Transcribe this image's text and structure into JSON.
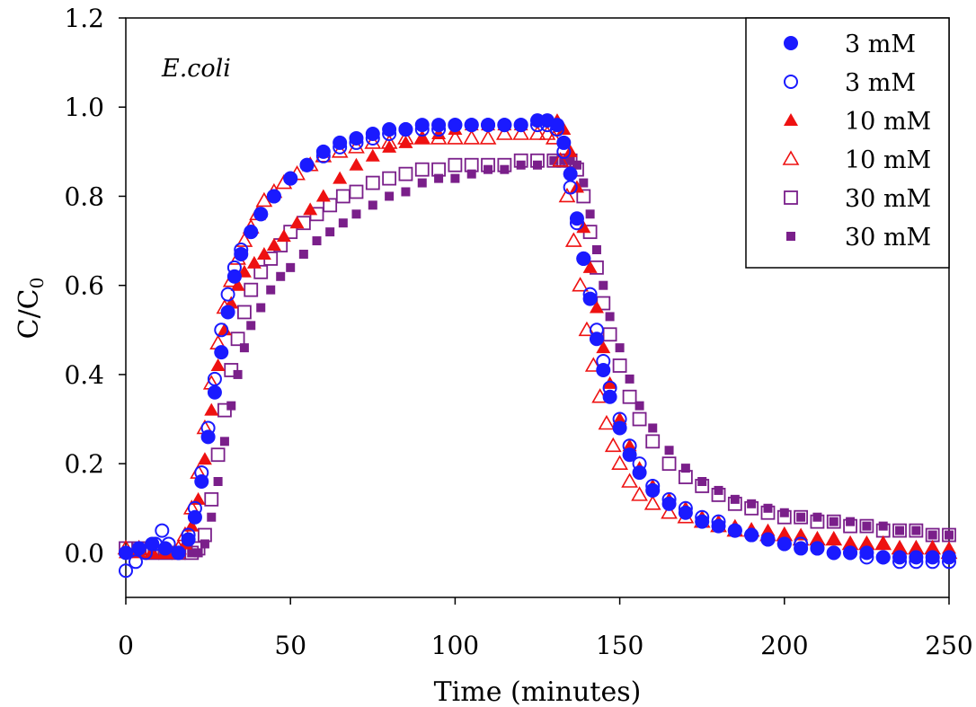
{
  "chart_data": {
    "type": "scatter",
    "title": "",
    "annotation": "E.coli",
    "xlabel": "Time (minutes)",
    "ylabel": "C/C",
    "ylabel_sub": "0",
    "xlim": [
      0,
      250
    ],
    "ylim": [
      -0.1,
      1.2
    ],
    "xticks": [
      0,
      50,
      100,
      150,
      200,
      250
    ],
    "xtick_labels": [
      "0",
      "50",
      "100",
      "150",
      "200",
      "250"
    ],
    "yticks": [
      0.0,
      0.2,
      0.4,
      0.6,
      0.8,
      1.0,
      1.2
    ],
    "ytick_labels": [
      "0.0",
      "0.2",
      "0.4",
      "0.6",
      "0.8",
      "1.0",
      "1.2"
    ],
    "grid": false,
    "legend_position": "top-right",
    "series": [
      {
        "name": "3 mM",
        "marker": "filled-circle",
        "color": "#1a1aff",
        "x": [
          0,
          4,
          8,
          12,
          16,
          19,
          21,
          23,
          25,
          27,
          29,
          31,
          33,
          35,
          38,
          41,
          45,
          50,
          55,
          60,
          65,
          70,
          75,
          80,
          85,
          90,
          95,
          100,
          105,
          110,
          115,
          120,
          125,
          128,
          131,
          133,
          135,
          137,
          139,
          141,
          143,
          145,
          147,
          150,
          153,
          156,
          160,
          165,
          170,
          175,
          180,
          185,
          190,
          195,
          200,
          205,
          210,
          215,
          220,
          225,
          230,
          235,
          240,
          245,
          250
        ],
        "y": [
          0.0,
          0.01,
          0.02,
          0.01,
          0.0,
          0.03,
          0.08,
          0.16,
          0.26,
          0.36,
          0.45,
          0.54,
          0.62,
          0.67,
          0.72,
          0.76,
          0.8,
          0.84,
          0.87,
          0.9,
          0.92,
          0.93,
          0.94,
          0.95,
          0.95,
          0.96,
          0.96,
          0.96,
          0.96,
          0.96,
          0.96,
          0.96,
          0.97,
          0.97,
          0.96,
          0.92,
          0.85,
          0.75,
          0.66,
          0.57,
          0.48,
          0.41,
          0.35,
          0.28,
          0.22,
          0.18,
          0.14,
          0.11,
          0.09,
          0.07,
          0.06,
          0.05,
          0.04,
          0.03,
          0.02,
          0.01,
          0.01,
          0.0,
          0.0,
          0.0,
          -0.01,
          -0.01,
          -0.01,
          -0.01,
          -0.01
        ]
      },
      {
        "name": "3 mM",
        "marker": "open-circle",
        "color": "#1a1aff",
        "x": [
          0,
          3,
          6,
          9,
          11,
          13,
          16,
          19,
          21,
          23,
          25,
          27,
          29,
          31,
          33,
          35,
          38,
          41,
          45,
          50,
          55,
          60,
          65,
          70,
          75,
          80,
          85,
          90,
          95,
          100,
          105,
          110,
          115,
          120,
          125,
          128,
          131,
          133,
          135,
          137,
          139,
          141,
          143,
          145,
          147,
          150,
          153,
          156,
          160,
          165,
          170,
          175,
          180,
          185,
          190,
          195,
          200,
          205,
          210,
          215,
          220,
          225,
          230,
          235,
          240,
          245,
          250
        ],
        "y": [
          -0.04,
          -0.02,
          0.0,
          0.02,
          0.05,
          0.02,
          0.0,
          0.04,
          0.1,
          0.18,
          0.28,
          0.39,
          0.5,
          0.58,
          0.64,
          0.68,
          0.72,
          0.76,
          0.8,
          0.84,
          0.87,
          0.89,
          0.91,
          0.92,
          0.93,
          0.94,
          0.95,
          0.95,
          0.95,
          0.96,
          0.96,
          0.96,
          0.96,
          0.96,
          0.96,
          0.96,
          0.95,
          0.9,
          0.82,
          0.74,
          0.66,
          0.58,
          0.5,
          0.43,
          0.37,
          0.3,
          0.24,
          0.2,
          0.15,
          0.12,
          0.1,
          0.08,
          0.07,
          0.05,
          0.04,
          0.03,
          0.02,
          0.02,
          0.01,
          0.0,
          0.0,
          -0.01,
          -0.01,
          -0.02,
          -0.02,
          -0.02,
          -0.02
        ]
      },
      {
        "name": "10 mM",
        "marker": "filled-triangle",
        "color": "#ee1111",
        "x": [
          0,
          4,
          8,
          12,
          16,
          18,
          20,
          22,
          24,
          26,
          28,
          30,
          32,
          34,
          36,
          39,
          42,
          45,
          48,
          52,
          56,
          60,
          65,
          70,
          75,
          80,
          85,
          90,
          95,
          100,
          105,
          110,
          115,
          120,
          125,
          128,
          131,
          133,
          135,
          137,
          139,
          141,
          143,
          145,
          147,
          150,
          153,
          156,
          160,
          165,
          170,
          175,
          180,
          185,
          190,
          195,
          200,
          205,
          210,
          215,
          220,
          225,
          230,
          235,
          240,
          245,
          250
        ],
        "y": [
          0.0,
          0.0,
          0.0,
          0.0,
          0.0,
          0.02,
          0.06,
          0.12,
          0.21,
          0.32,
          0.42,
          0.5,
          0.56,
          0.6,
          0.63,
          0.65,
          0.67,
          0.69,
          0.71,
          0.74,
          0.77,
          0.8,
          0.84,
          0.87,
          0.89,
          0.91,
          0.92,
          0.93,
          0.94,
          0.95,
          0.96,
          0.96,
          0.96,
          0.96,
          0.97,
          0.97,
          0.97,
          0.95,
          0.9,
          0.82,
          0.73,
          0.64,
          0.55,
          0.46,
          0.38,
          0.3,
          0.24,
          0.19,
          0.15,
          0.12,
          0.1,
          0.08,
          0.07,
          0.06,
          0.05,
          0.05,
          0.04,
          0.04,
          0.03,
          0.03,
          0.02,
          0.02,
          0.02,
          0.01,
          0.01,
          0.01,
          0.01
        ]
      },
      {
        "name": "10 mM",
        "marker": "open-triangle",
        "color": "#ee1111",
        "x": [
          0,
          4,
          8,
          12,
          16,
          18,
          20,
          22,
          24,
          26,
          28,
          30,
          32,
          34,
          36,
          38,
          40,
          42,
          45,
          48,
          52,
          56,
          60,
          65,
          70,
          75,
          80,
          85,
          90,
          95,
          100,
          105,
          110,
          115,
          120,
          125,
          128,
          130,
          132,
          134,
          136,
          138,
          140,
          142,
          144,
          146,
          148,
          150,
          153,
          156,
          160,
          165,
          170,
          175,
          180,
          185,
          190,
          195,
          200,
          205,
          210,
          215,
          220,
          225,
          230,
          235,
          240,
          245,
          250
        ],
        "y": [
          0.01,
          0.01,
          0.0,
          0.0,
          0.01,
          0.04,
          0.1,
          0.18,
          0.28,
          0.38,
          0.47,
          0.55,
          0.61,
          0.66,
          0.7,
          0.73,
          0.76,
          0.79,
          0.81,
          0.83,
          0.85,
          0.87,
          0.89,
          0.9,
          0.91,
          0.92,
          0.92,
          0.93,
          0.93,
          0.93,
          0.93,
          0.93,
          0.93,
          0.94,
          0.94,
          0.94,
          0.94,
          0.93,
          0.88,
          0.8,
          0.7,
          0.6,
          0.5,
          0.42,
          0.35,
          0.29,
          0.24,
          0.2,
          0.16,
          0.13,
          0.11,
          0.09,
          0.08,
          0.07,
          0.06,
          0.05,
          0.05,
          0.04,
          0.04,
          0.03,
          0.03,
          0.03,
          0.02,
          0.02,
          0.02,
          0.01,
          0.01,
          0.01,
          0.0
        ]
      },
      {
        "name": "30 mM",
        "marker": "open-square",
        "color": "#7a1f8a",
        "x": [
          0,
          4,
          8,
          12,
          16,
          20,
          22,
          24,
          26,
          28,
          30,
          32,
          34,
          36,
          38,
          41,
          44,
          47,
          50,
          54,
          58,
          62,
          66,
          70,
          75,
          80,
          85,
          90,
          95,
          100,
          105,
          110,
          115,
          120,
          125,
          130,
          133,
          135,
          137,
          139,
          141,
          143,
          145,
          147,
          150,
          153,
          156,
          160,
          165,
          170,
          175,
          180,
          185,
          190,
          195,
          200,
          205,
          210,
          215,
          220,
          225,
          230,
          235,
          240,
          245,
          250
        ],
        "y": [
          0.01,
          0.01,
          0.0,
          0.0,
          0.0,
          0.0,
          0.01,
          0.04,
          0.12,
          0.22,
          0.32,
          0.41,
          0.48,
          0.54,
          0.59,
          0.63,
          0.66,
          0.69,
          0.72,
          0.74,
          0.76,
          0.78,
          0.8,
          0.81,
          0.83,
          0.84,
          0.85,
          0.86,
          0.86,
          0.87,
          0.87,
          0.87,
          0.87,
          0.88,
          0.88,
          0.88,
          0.88,
          0.88,
          0.86,
          0.8,
          0.72,
          0.64,
          0.56,
          0.49,
          0.42,
          0.35,
          0.3,
          0.25,
          0.2,
          0.17,
          0.15,
          0.13,
          0.11,
          0.1,
          0.09,
          0.08,
          0.08,
          0.07,
          0.07,
          0.06,
          0.06,
          0.05,
          0.05,
          0.05,
          0.04,
          0.04
        ]
      },
      {
        "name": "30 mM",
        "marker": "filled-square",
        "color": "#7a1f8a",
        "x": [
          0,
          4,
          8,
          12,
          16,
          20,
          22,
          24,
          26,
          28,
          30,
          32,
          34,
          36,
          38,
          41,
          44,
          47,
          50,
          54,
          58,
          62,
          66,
          70,
          75,
          80,
          85,
          90,
          95,
          100,
          105,
          110,
          115,
          120,
          125,
          130,
          133,
          135,
          137,
          139,
          141,
          143,
          145,
          147,
          150,
          153,
          156,
          160,
          165,
          170,
          175,
          180,
          185,
          190,
          195,
          200,
          205,
          210,
          215,
          220,
          225,
          230,
          235,
          240,
          245,
          250
        ],
        "y": [
          0.0,
          0.0,
          0.0,
          0.0,
          0.0,
          0.0,
          0.0,
          0.02,
          0.08,
          0.16,
          0.25,
          0.33,
          0.4,
          0.46,
          0.51,
          0.55,
          0.59,
          0.62,
          0.64,
          0.67,
          0.7,
          0.72,
          0.74,
          0.76,
          0.78,
          0.8,
          0.81,
          0.83,
          0.84,
          0.84,
          0.85,
          0.86,
          0.86,
          0.87,
          0.87,
          0.88,
          0.88,
          0.88,
          0.87,
          0.83,
          0.76,
          0.68,
          0.6,
          0.53,
          0.46,
          0.39,
          0.33,
          0.28,
          0.23,
          0.19,
          0.16,
          0.14,
          0.12,
          0.11,
          0.1,
          0.09,
          0.08,
          0.08,
          0.07,
          0.07,
          0.06,
          0.06,
          0.05,
          0.05,
          0.04,
          0.04
        ]
      }
    ]
  }
}
